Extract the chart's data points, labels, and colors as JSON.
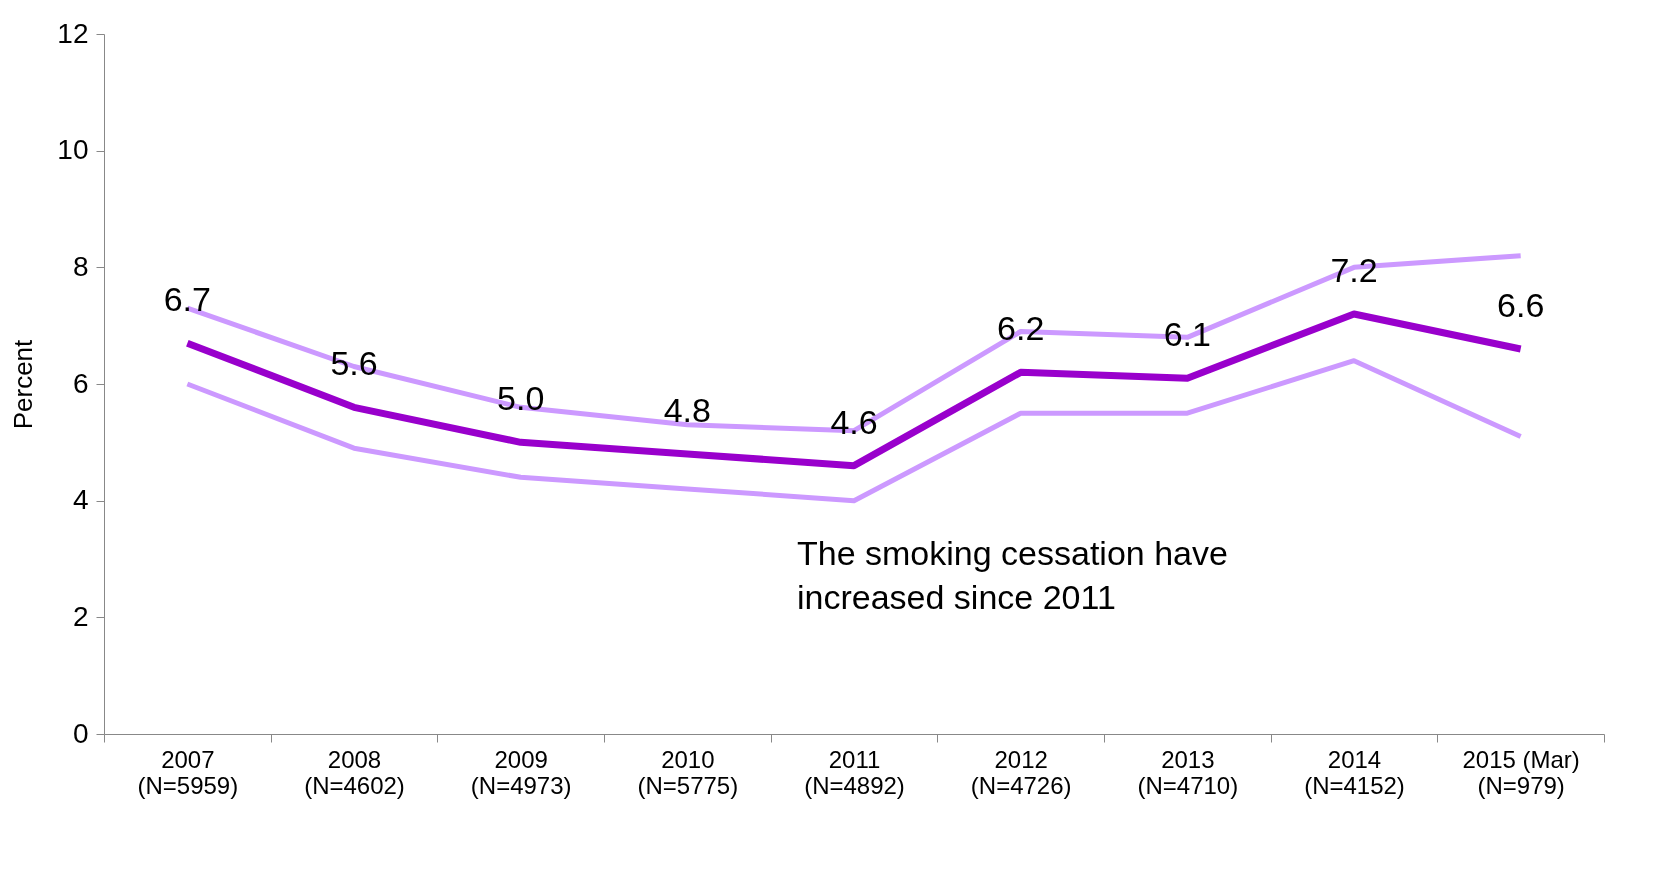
{
  "chart_data": {
    "type": "line",
    "ylabel": "Percent",
    "categories": [
      "2007\n(N=5959)",
      "2008\n(N=4602)",
      "2009\n(N=4973)",
      "2010\n(N=5775)",
      "2011\n(N=4892)",
      "2012\n(N=4726)",
      "2013\n(N=4710)",
      "2014\n(N=4152)",
      "2015 (Mar)\n(N=979)"
    ],
    "series": [
      {
        "color": "#cc99ff",
        "values": [
          7.3,
          6.3,
          5.6,
          5.3,
          5.2,
          6.9,
          6.8,
          8.0,
          8.2
        ]
      },
      {
        "color": "#cc99ff",
        "values": [
          6.0,
          4.9,
          4.4,
          4.2,
          4.0,
          5.5,
          5.5,
          6.4,
          5.1
        ]
      },
      {
        "color": "#9900cc",
        "values": [
          6.7,
          5.6,
          5.0,
          4.8,
          4.6,
          6.2,
          6.1,
          7.2,
          6.6
        ],
        "value_labels": [
          "6.7",
          "5.6",
          "5.0",
          "4.8",
          "4.6",
          "6.2",
          "6.1",
          "7.2",
          "6.6"
        ]
      }
    ],
    "ylim": [
      0,
      12
    ],
    "yticks": [
      0,
      2,
      4,
      6,
      8,
      10,
      12
    ],
    "grid": false,
    "marker": "none",
    "annotations": [
      "The smoking cessation have\nincreased since 2011"
    ]
  }
}
